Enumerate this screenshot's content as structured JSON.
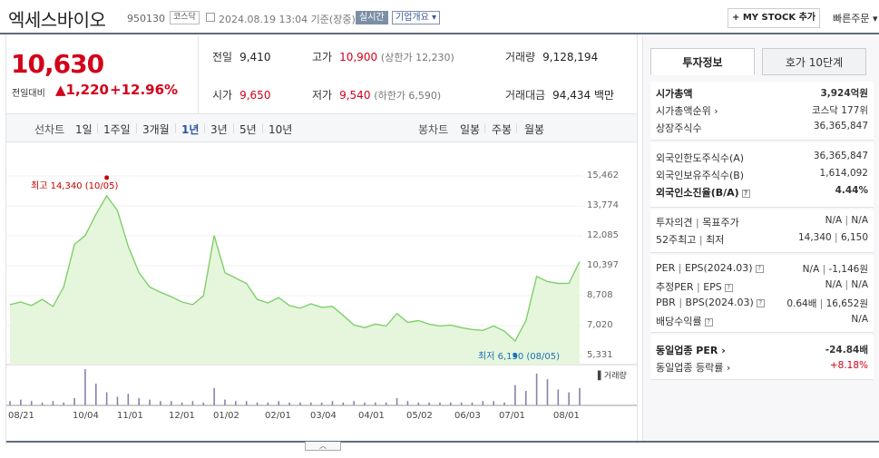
{
  "header": {
    "name": "엑세스바이오",
    "code": "950130",
    "market": "코스닥",
    "datetime": "2024.08.19 13:04 기준(장중)",
    "realtime": "실시간",
    "company": "기업개요 ▾",
    "mystock": "+ MY STOCK 추가",
    "quick": "빠른주문 ▾"
  },
  "price": {
    "now": "10,630",
    "change_label": "전일대비",
    "change": "▲1,220",
    "percent": "+12.96%"
  },
  "stats": {
    "prev_k": "전일",
    "prev_v": "9,410",
    "high_k": "고가",
    "high_v": "10,900",
    "high_s": "(상한가 12,230)",
    "vol_k": "거래량",
    "vol_v": "9,128,194",
    "open_k": "시가",
    "open_v": "9,650",
    "low_k": "저가",
    "low_v": "9,540",
    "low_s": "(하한가 6,590)",
    "amt_k": "거래대금",
    "amt_v": "94,434",
    "amt_u": "백만"
  },
  "periods": {
    "line_label": "선차트",
    "items": [
      "1일",
      "1주일",
      "3개월",
      "1년",
      "3년",
      "5년",
      "10년"
    ],
    "selected": "1년",
    "candle_label": "봉차트",
    "candles": [
      "일봉",
      "주봉",
      "월봉"
    ]
  },
  "chart_data": {
    "type": "area",
    "y_ticks": [
      "15,462",
      "13,774",
      "12,085",
      "10,397",
      "8,708",
      "7,020",
      "5,331"
    ],
    "x_ticks": [
      "08/21",
      "10/04",
      "11/01",
      "12/01",
      "01/02",
      "02/01",
      "03/04",
      "04/01",
      "05/02",
      "06/03",
      "07/01",
      "08/01"
    ],
    "high_label": "최고 14,340 (10/05)",
    "low_label": "최저 6,150 (08/05)",
    "volume_label": "거래량",
    "colors": {
      "line": "#7fcf6a",
      "fill": "#e6f6dc",
      "high": "#c40000",
      "low": "#1a6fb7"
    },
    "series": [
      {
        "x": "08/21",
        "y": 8200
      },
      {
        "x": "08/28",
        "y": 8350
      },
      {
        "x": "09/04",
        "y": 8150
      },
      {
        "x": "09/08",
        "y": 8500
      },
      {
        "x": "09/12",
        "y": 8100
      },
      {
        "x": "09/15",
        "y": 9200
      },
      {
        "x": "09/19",
        "y": 11600
      },
      {
        "x": "09/26",
        "y": 12100
      },
      {
        "x": "10/01",
        "y": 13300
      },
      {
        "x": "10/05",
        "y": 14340
      },
      {
        "x": "10/10",
        "y": 13500
      },
      {
        "x": "10/16",
        "y": 11500
      },
      {
        "x": "10/23",
        "y": 10000
      },
      {
        "x": "10/30",
        "y": 9200
      },
      {
        "x": "11/06",
        "y": 8900
      },
      {
        "x": "11/13",
        "y": 8650
      },
      {
        "x": "11/20",
        "y": 8350
      },
      {
        "x": "11/27",
        "y": 8200
      },
      {
        "x": "12/04",
        "y": 8700
      },
      {
        "x": "12/07",
        "y": 12100
      },
      {
        "x": "12/12",
        "y": 10000
      },
      {
        "x": "12/18",
        "y": 9700
      },
      {
        "x": "12/26",
        "y": 9400
      },
      {
        "x": "01/05",
        "y": 8500
      },
      {
        "x": "01/15",
        "y": 8300
      },
      {
        "x": "01/25",
        "y": 8600
      },
      {
        "x": "02/05",
        "y": 8150
      },
      {
        "x": "02/15",
        "y": 8000
      },
      {
        "x": "02/26",
        "y": 8250
      },
      {
        "x": "03/06",
        "y": 8050
      },
      {
        "x": "03/18",
        "y": 8100
      },
      {
        "x": "03/27",
        "y": 7600
      },
      {
        "x": "04/05",
        "y": 7050
      },
      {
        "x": "04/15",
        "y": 6900
      },
      {
        "x": "04/25",
        "y": 7100
      },
      {
        "x": "05/02",
        "y": 7000
      },
      {
        "x": "05/06",
        "y": 7700
      },
      {
        "x": "05/13",
        "y": 7200
      },
      {
        "x": "05/23",
        "y": 7300
      },
      {
        "x": "06/03",
        "y": 7100
      },
      {
        "x": "06/14",
        "y": 7000
      },
      {
        "x": "06/25",
        "y": 7050
      },
      {
        "x": "07/05",
        "y": 6900
      },
      {
        "x": "07/15",
        "y": 6800
      },
      {
        "x": "07/25",
        "y": 6750
      },
      {
        "x": "07/31",
        "y": 7000
      },
      {
        "x": "08/02",
        "y": 6700
      },
      {
        "x": "08/05",
        "y": 6150
      },
      {
        "x": "08/07",
        "y": 7300
      },
      {
        "x": "08/09",
        "y": 9800
      },
      {
        "x": "08/13",
        "y": 9500
      },
      {
        "x": "08/15",
        "y": 9400
      },
      {
        "x": "08/16",
        "y": 9410
      },
      {
        "x": "08/19",
        "y": 10630
      }
    ],
    "volume": [
      3,
      4,
      3,
      2,
      3,
      2,
      5,
      25,
      15,
      9,
      6,
      8,
      5,
      4,
      3,
      3,
      2,
      3,
      2,
      12,
      4,
      3,
      3,
      2,
      2,
      3,
      2,
      2,
      2,
      2,
      3,
      2,
      3,
      2,
      2,
      2,
      5,
      3,
      2,
      2,
      2,
      2,
      2,
      2,
      3,
      3,
      2,
      14,
      10,
      22,
      18,
      11,
      9,
      12
    ]
  },
  "side": {
    "tab_on": "투자정보",
    "tab_off": "호가 10단계",
    "mcap_k": "시가총액",
    "mcap_v": "3,924억원",
    "mcap_rank_k": "시가총액순위",
    "mcap_rank_v": "코스닥 177위",
    "shares_k": "상장주식수",
    "shares_v": "36,365,847",
    "for_lim_k": "외국인한도주식수(A)",
    "for_lim_v": "36,365,847",
    "for_own_k": "외국인보유주식수(B)",
    "for_own_v": "1,614,092",
    "for_rate_k": "외국인소진율(B/A)",
    "for_rate_v": "4.44%",
    "opinion_k": "투자의견",
    "target_k": "목표주가",
    "opinion_v": "N/A",
    "target_v": "N/A",
    "w52_k": "52주최고",
    "w52_low_k": "최저",
    "w52_hi_v": "14,340",
    "w52_lo_v": "6,150",
    "per_k": "PER",
    "eps_k": "EPS(2024.03)",
    "per_v": "N/A",
    "eps_v": "-1,146원",
    "eper_k": "추정PER",
    "eeps_k": "EPS",
    "eper_v": "N/A",
    "eeps_v": "N/A",
    "pbr_k": "PBR",
    "bps_k": "BPS(2024.03)",
    "pbr_v": "0.64배",
    "bps_v": "16,652원",
    "div_k": "배당수익률",
    "div_v": "N/A",
    "ind_per_k": "동일업종 PER",
    "ind_per_v": "-24.84배",
    "ind_rate_k": "동일업종 등락률",
    "ind_rate_v": "+8.18%"
  }
}
